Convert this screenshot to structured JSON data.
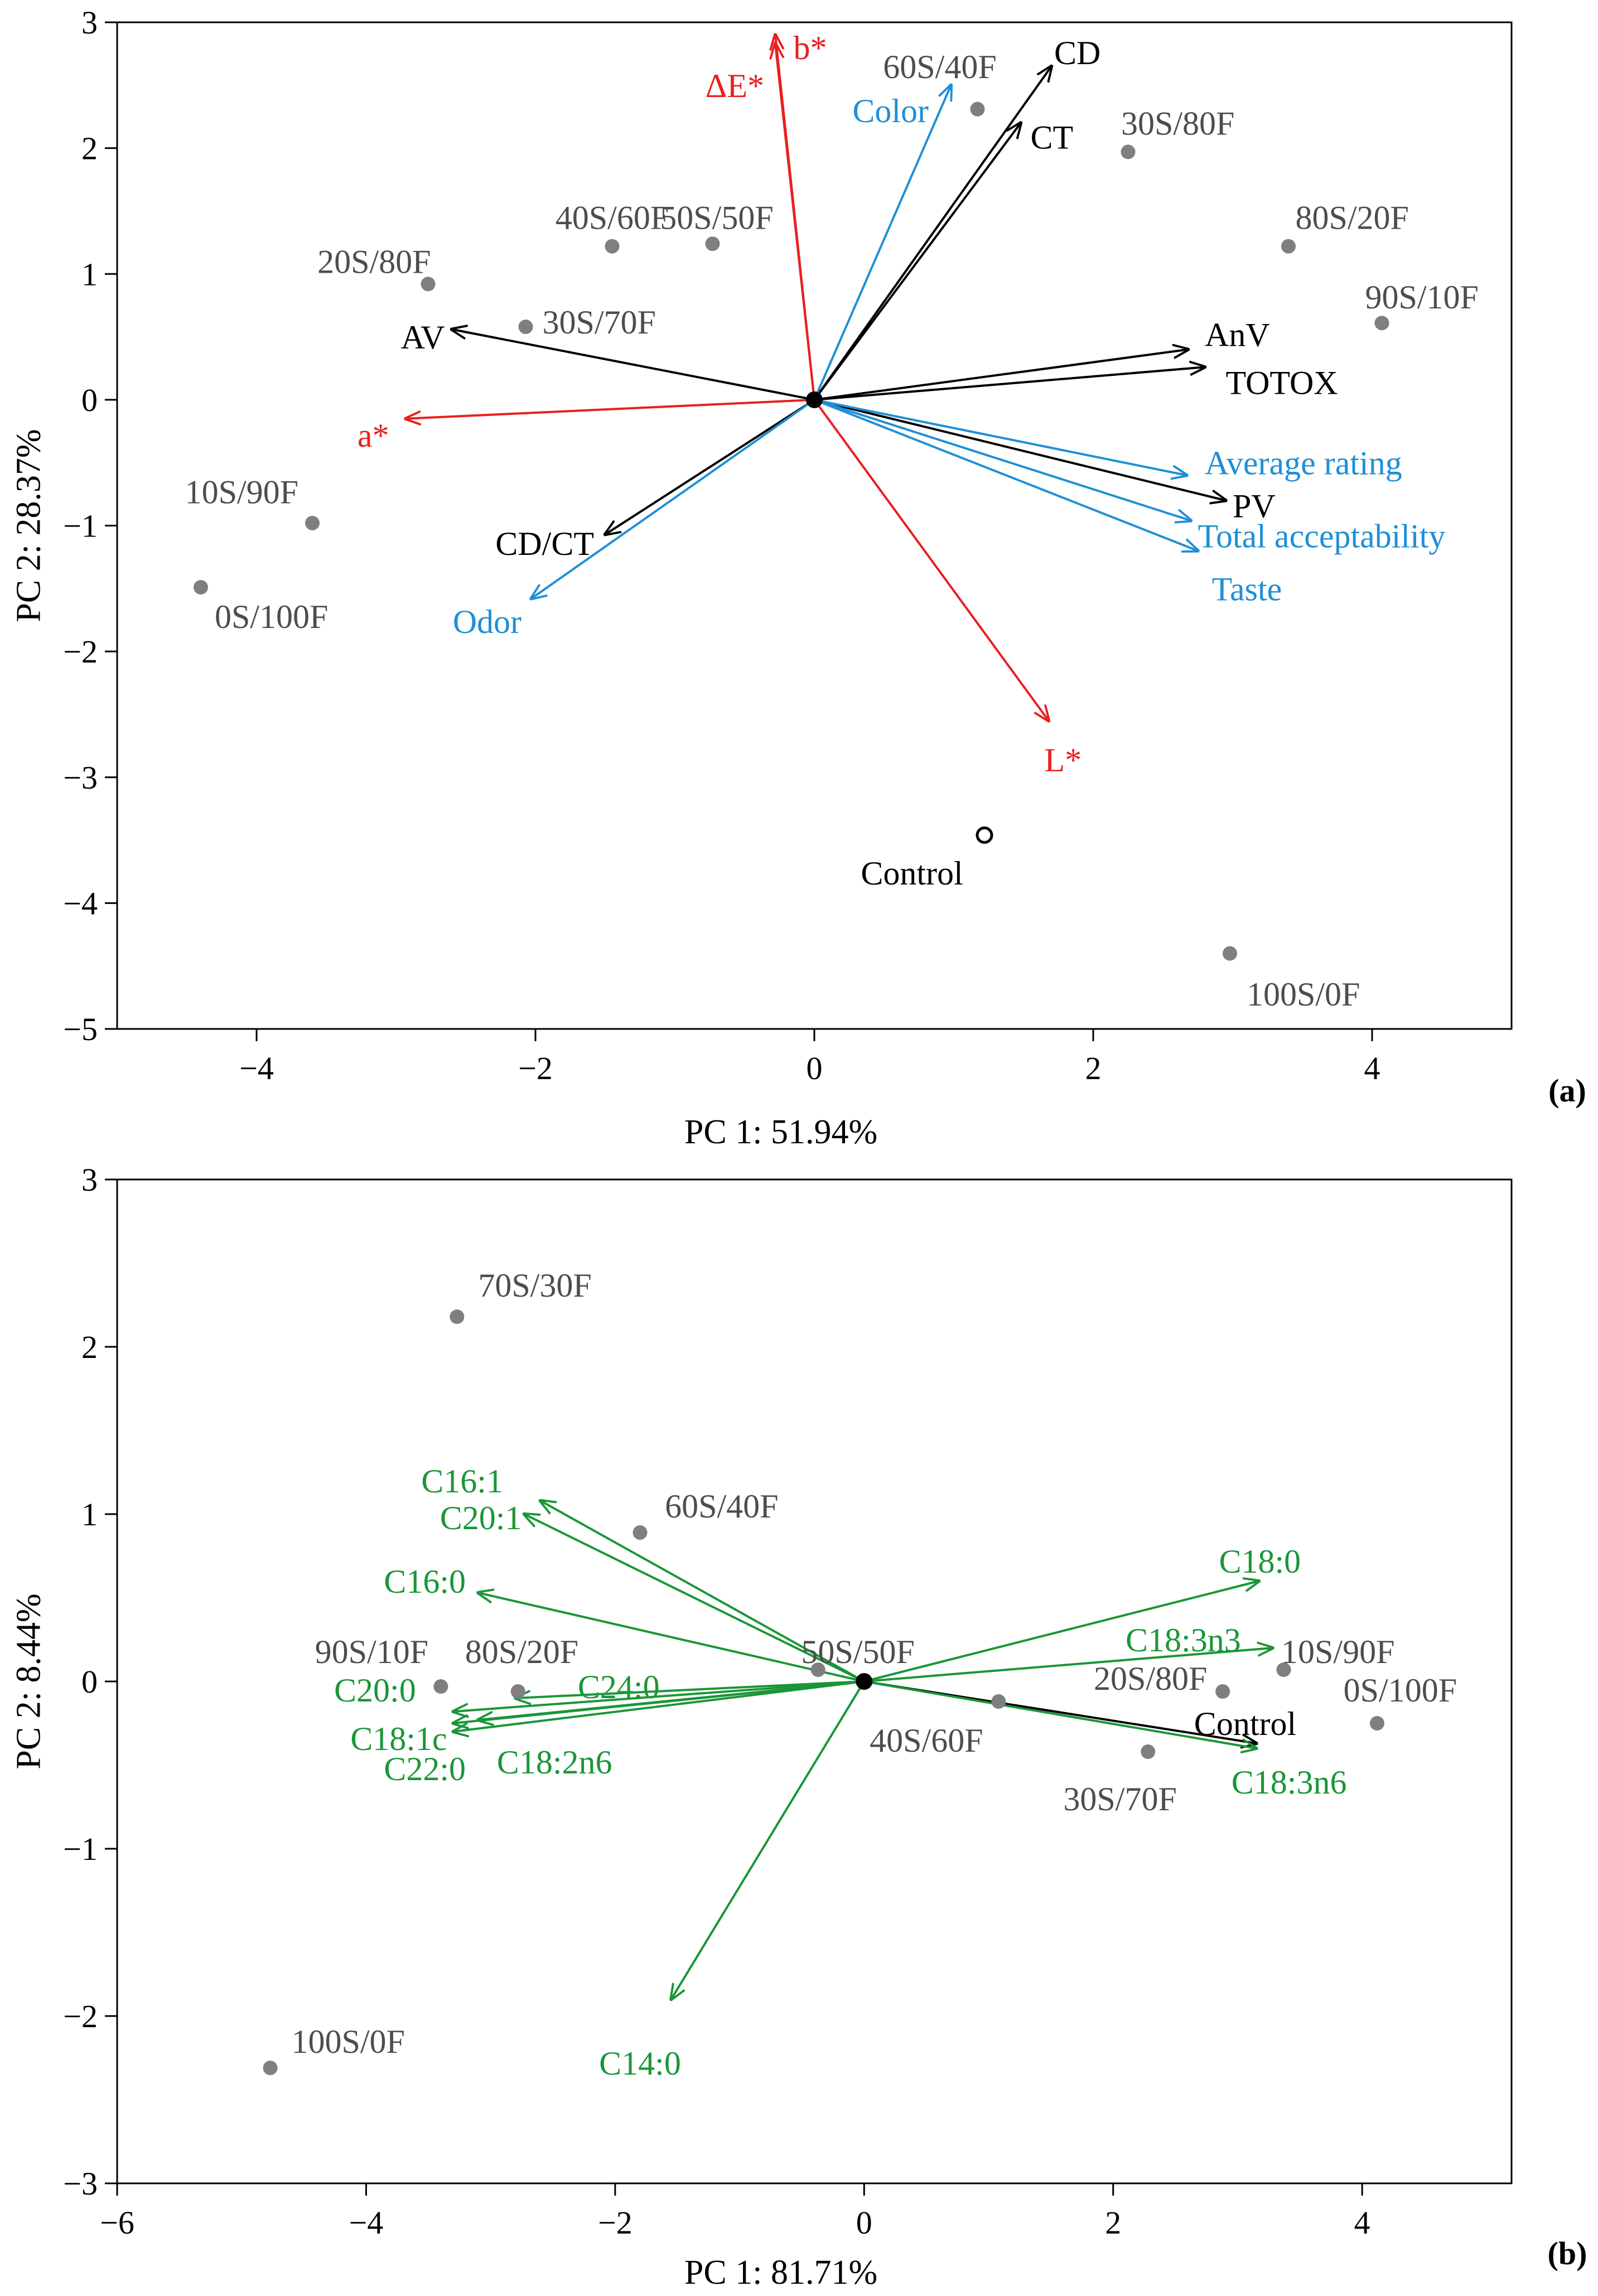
{
  "colors": {
    "black": "#000000",
    "red": "#e8201e",
    "blue": "#1f8fd6",
    "green": "#1a9637",
    "point": "#7f7f7f",
    "label_gray": "#4d4d4d"
  },
  "chart_data": [
    {
      "panel": "(a)",
      "type": "scatter",
      "title": "",
      "xlabel": "PC 1: 51.94%",
      "ylabel": "PC 2: 28.37%",
      "xlim": [
        -5.0,
        5.0
      ],
      "ylim": [
        -5,
        3
      ],
      "xticks": [
        -4,
        -2,
        0,
        2,
        4
      ],
      "yticks": [
        -5,
        -4,
        -3,
        -2,
        -1,
        0,
        1,
        2,
        3
      ],
      "xtick_labels": [
        "−4",
        "−2",
        "0",
        "2",
        "4"
      ],
      "ytick_labels": [
        "−5",
        "−4",
        "−3",
        "−2",
        "−1",
        "0",
        "1",
        "2",
        "3"
      ],
      "grid": false,
      "points": [
        {
          "label": "60S/40F",
          "x": 1.17,
          "y": 2.31,
          "lx": 0.9,
          "ly": 2.65,
          "anchor": "middle"
        },
        {
          "label": "30S/80F",
          "x": 2.25,
          "y": 1.97,
          "lx": 2.2,
          "ly": 2.2,
          "anchor": "start"
        },
        {
          "label": "80S/20F",
          "x": 3.4,
          "y": 1.22,
          "lx": 3.45,
          "ly": 1.45,
          "anchor": "start"
        },
        {
          "label": "90S/10F",
          "x": 4.07,
          "y": 0.61,
          "lx": 3.95,
          "ly": 0.82,
          "anchor": "start"
        },
        {
          "label": "40S/60F",
          "x": -1.45,
          "y": 1.22,
          "lx": -1.45,
          "ly": 1.45,
          "anchor": "middle"
        },
        {
          "label": "50S/50F",
          "x": -0.73,
          "y": 1.24,
          "lx": -0.7,
          "ly": 1.45,
          "anchor": "middle"
        },
        {
          "label": "20S/80F",
          "x": -2.77,
          "y": 0.92,
          "lx": -2.75,
          "ly": 1.1,
          "anchor": "end"
        },
        {
          "label": "30S/70F",
          "x": -2.07,
          "y": 0.58,
          "lx": -1.95,
          "ly": 0.62,
          "anchor": "start"
        },
        {
          "label": "10S/90F",
          "x": -3.6,
          "y": -0.98,
          "lx": -3.7,
          "ly": -0.73,
          "anchor": "end"
        },
        {
          "label": "0S/100F",
          "x": -4.4,
          "y": -1.49,
          "lx": -4.3,
          "ly": -1.72,
          "anchor": "start"
        },
        {
          "label": "Control",
          "x": 1.22,
          "y": -3.46,
          "lx": 0.7,
          "ly": -3.76,
          "anchor": "middle",
          "hollow": true
        },
        {
          "label": "100S/0F",
          "x": 2.98,
          "y": -4.4,
          "lx": 3.1,
          "ly": -4.72,
          "anchor": "start"
        }
      ],
      "vectors": [
        {
          "label": "CD",
          "color": "red_is_no",
          "group": "black",
          "x": 1.7,
          "y": 2.65,
          "lx": 1.72,
          "ly": 2.76,
          "anchor": "start"
        },
        {
          "label": "CT",
          "group": "black",
          "x": 1.48,
          "y": 2.2,
          "lx": 1.55,
          "ly": 2.09,
          "anchor": "start"
        },
        {
          "label": "AnV",
          "group": "black",
          "x": 2.68,
          "y": 0.4,
          "lx": 2.8,
          "ly": 0.52,
          "anchor": "start"
        },
        {
          "label": "TOTOX",
          "group": "black",
          "x": 2.8,
          "y": 0.26,
          "lx": 2.95,
          "ly": 0.14,
          "anchor": "start"
        },
        {
          "label": "PV",
          "group": "black",
          "x": 2.95,
          "y": -0.8,
          "lx": 3.0,
          "ly": -0.84,
          "anchor": "start"
        },
        {
          "label": "AV",
          "group": "black",
          "x": -2.6,
          "y": 0.56,
          "lx": -2.65,
          "ly": 0.5,
          "anchor": "end"
        },
        {
          "label": "CD/CT",
          "group": "black",
          "x": -1.5,
          "y": -1.07,
          "lx": -1.58,
          "ly": -1.14,
          "anchor": "end"
        },
        {
          "label": "b*",
          "group": "red",
          "x": -0.28,
          "y": 2.9,
          "lx": -0.15,
          "ly": 2.8,
          "anchor": "start"
        },
        {
          "label": "ΔE*",
          "group": "red",
          "x": -0.28,
          "y": 2.83,
          "lx": -0.36,
          "ly": 2.5,
          "anchor": "end"
        },
        {
          "label": "a*",
          "group": "red",
          "x": -2.93,
          "y": -0.15,
          "lx": -3.05,
          "ly": -0.28,
          "anchor": "end"
        },
        {
          "label": "L*",
          "group": "red",
          "x": 1.68,
          "y": -2.55,
          "lx": 1.65,
          "ly": -2.86,
          "anchor": "start"
        },
        {
          "label": "Color",
          "group": "blue",
          "x": 0.98,
          "y": 2.5,
          "lx": 0.82,
          "ly": 2.3,
          "anchor": "end"
        },
        {
          "label": "Odor",
          "group": "blue",
          "x": -2.03,
          "y": -1.58,
          "lx": -2.1,
          "ly": -1.76,
          "anchor": "end"
        },
        {
          "label": "Average rating",
          "group": "blue",
          "x": 2.67,
          "y": -0.6,
          "lx": 2.8,
          "ly": -0.5,
          "anchor": "start"
        },
        {
          "label": "Total acceptability",
          "group": "blue",
          "x": 2.7,
          "y": -0.96,
          "lx": 2.75,
          "ly": -1.08,
          "anchor": "start"
        },
        {
          "label": "Taste",
          "group": "blue",
          "x": 2.75,
          "y": -1.2,
          "lx": 2.85,
          "ly": -1.5,
          "anchor": "start"
        }
      ]
    },
    {
      "panel": "(b)",
      "type": "scatter",
      "title": "",
      "xlabel": "PC 1: 81.71%",
      "ylabel": "PC 2: 8.44%",
      "xlim": [
        -6.0,
        5.2
      ],
      "ylim": [
        -3,
        3
      ],
      "xticks": [
        -6,
        -4,
        -2,
        0,
        2,
        4
      ],
      "yticks": [
        -3,
        -2,
        -1,
        0,
        1,
        2,
        3
      ],
      "xtick_labels": [
        "−6",
        "−4",
        "−2",
        "0",
        "2",
        "4"
      ],
      "ytick_labels": [
        "−3",
        "−2",
        "−1",
        "0",
        "1",
        "2",
        "3"
      ],
      "grid": false,
      "points": [
        {
          "label": "70S/30F",
          "x": -3.27,
          "y": 2.18,
          "lx": -3.1,
          "ly": 2.37,
          "anchor": "start"
        },
        {
          "label": "60S/40F",
          "x": -1.8,
          "y": 0.89,
          "lx": -1.6,
          "ly": 1.05,
          "anchor": "start"
        },
        {
          "label": "50S/50F",
          "x": -0.37,
          "y": 0.07,
          "lx": -0.05,
          "ly": 0.18,
          "anchor": "middle"
        },
        {
          "label": "90S/10F",
          "x": -3.4,
          "y": -0.03,
          "lx": -3.5,
          "ly": 0.18,
          "anchor": "end"
        },
        {
          "label": "80S/20F",
          "x": -2.78,
          "y": -0.06,
          "lx": -2.75,
          "ly": 0.18,
          "anchor": "middle"
        },
        {
          "label": "40S/60F",
          "x": 1.08,
          "y": -0.12,
          "lx": 0.5,
          "ly": -0.35,
          "anchor": "middle"
        },
        {
          "label": "20S/80F",
          "x": 2.88,
          "y": -0.06,
          "lx": 2.3,
          "ly": 0.02,
          "anchor": "middle"
        },
        {
          "label": "10S/90F",
          "x": 3.37,
          "y": 0.07,
          "lx": 3.35,
          "ly": 0.18,
          "anchor": "start"
        },
        {
          "label": "0S/100F",
          "x": 4.12,
          "y": -0.25,
          "lx": 3.85,
          "ly": -0.05,
          "anchor": "start"
        },
        {
          "label": "30S/70F",
          "x": 2.28,
          "y": -0.42,
          "lx": 1.6,
          "ly": -0.7,
          "anchor": "start"
        },
        {
          "label": "100S/0F",
          "x": -4.77,
          "y": -2.31,
          "lx": -4.6,
          "ly": -2.15,
          "anchor": "start"
        }
      ],
      "vectors": [
        {
          "label": "C16:1",
          "group": "green",
          "x": -2.6,
          "y": 1.08,
          "lx": -2.9,
          "ly": 1.2,
          "anchor": "end"
        },
        {
          "label": "C20:1",
          "group": "green",
          "x": -2.73,
          "y": 1.0,
          "lx": -2.75,
          "ly": 0.98,
          "anchor": "end"
        },
        {
          "label": "C16:0",
          "group": "green",
          "x": -3.1,
          "y": 0.53,
          "lx": -3.2,
          "ly": 0.6,
          "anchor": "end"
        },
        {
          "label": "C20:0",
          "group": "green",
          "x": -3.3,
          "y": -0.18,
          "lx": -3.6,
          "ly": -0.05,
          "anchor": "end"
        },
        {
          "label": "C24:0",
          "group": "green",
          "x": -2.8,
          "y": -0.1,
          "lx": -2.3,
          "ly": -0.03,
          "anchor": "start"
        },
        {
          "label": "C18:1c",
          "group": "green",
          "x": -3.3,
          "y": -0.25,
          "lx": -3.35,
          "ly": -0.34,
          "anchor": "end"
        },
        {
          "label": "C22:0",
          "group": "green",
          "x": -3.3,
          "y": -0.3,
          "lx": -3.2,
          "ly": -0.52,
          "anchor": "end"
        },
        {
          "label": "C18:2n6",
          "group": "green",
          "x": -3.1,
          "y": -0.23,
          "lx": -2.95,
          "ly": -0.48,
          "anchor": "start"
        },
        {
          "label": "C14:0",
          "group": "green",
          "x": -1.55,
          "y": -1.9,
          "lx": -1.8,
          "ly": -2.28,
          "anchor": "middle"
        },
        {
          "label": "C18:0",
          "group": "green",
          "x": 3.17,
          "y": 0.6,
          "lx": 2.85,
          "ly": 0.72,
          "anchor": "start"
        },
        {
          "label": "C18:3n3",
          "group": "green",
          "x": 3.28,
          "y": 0.2,
          "lx": 2.1,
          "ly": 0.25,
          "anchor": "start"
        },
        {
          "label": "Control",
          "group": "black",
          "x": 3.15,
          "y": -0.37,
          "lx": 2.65,
          "ly": -0.25,
          "anchor": "start"
        },
        {
          "label": "C18:3n6",
          "group": "green",
          "x": 3.15,
          "y": -0.4,
          "lx": 2.95,
          "ly": -0.6,
          "anchor": "start"
        }
      ]
    }
  ],
  "panel_labels": [
    "(a)",
    "(b)"
  ]
}
